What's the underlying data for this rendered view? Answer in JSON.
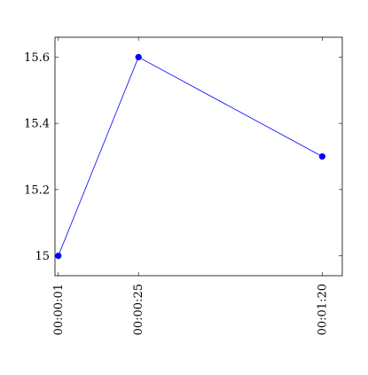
{
  "chart_data": {
    "type": "line",
    "title": "",
    "xlabel": "",
    "ylabel": "",
    "x_scale": "time",
    "xlim": [
      "00:00:00",
      "00:01:26"
    ],
    "ylim": [
      14.94,
      15.66
    ],
    "x_ticks": [
      "00:00:01",
      "00:00:25",
      "00:01:20"
    ],
    "y_ticks": [
      15,
      15.2,
      15.4,
      15.6
    ],
    "y_tick_labels": [
      "15",
      "15.2",
      "15.4",
      "15.6"
    ],
    "grid": false,
    "legend": "none",
    "series": [
      {
        "color": "#0000ff",
        "marker": "circle",
        "points": [
          {
            "x": "00:00:01",
            "y": 15.0
          },
          {
            "x": "00:00:25",
            "y": 15.6
          },
          {
            "x": "00:01:20",
            "y": 15.3
          }
        ]
      }
    ]
  }
}
